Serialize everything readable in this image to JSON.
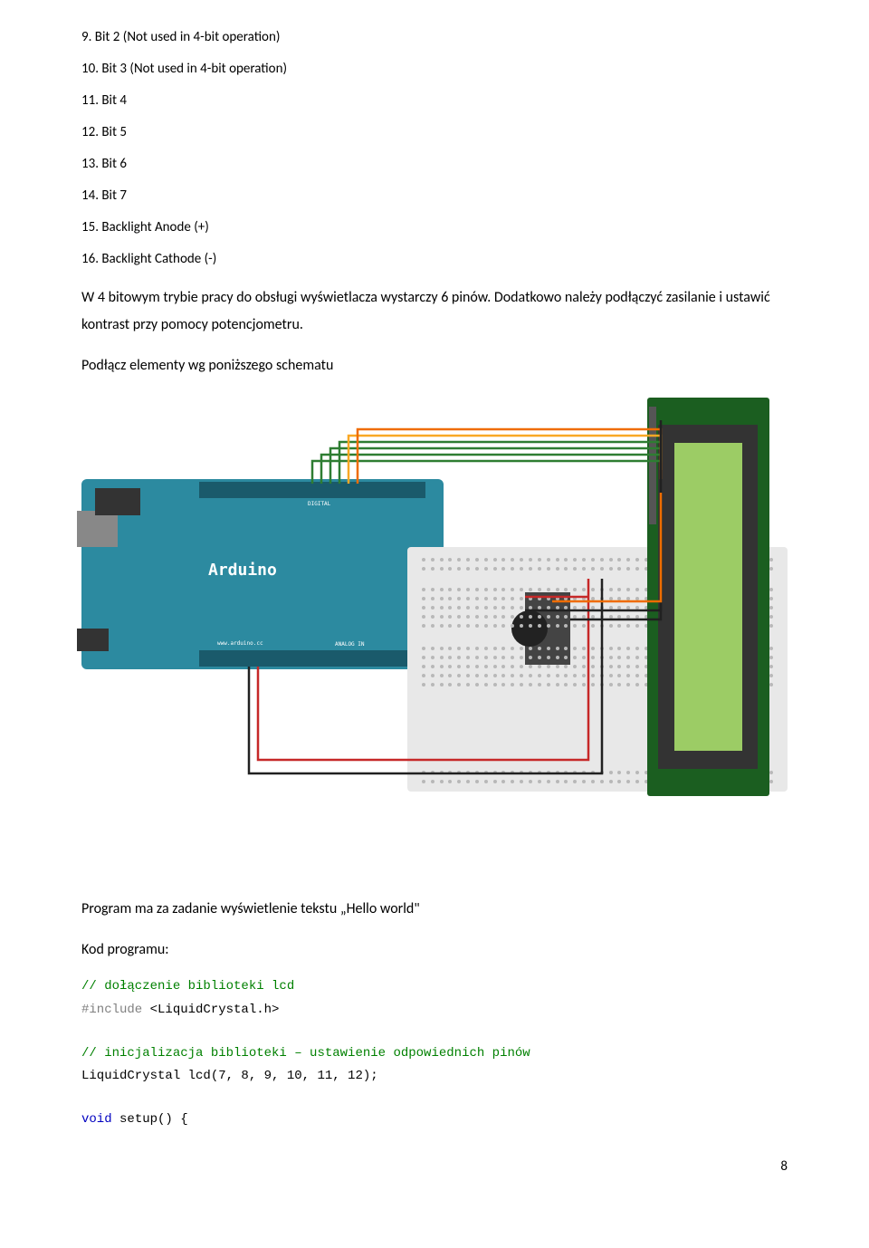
{
  "list": {
    "items": [
      "9.   Bit 2 (Not used in 4-bit operation)",
      "10. Bit 3 (Not used in 4-bit operation)",
      "11. Bit 4",
      "12. Bit 5",
      "13. Bit 6",
      "14. Bit 7",
      "15. Backlight Anode (+)",
      "16. Backlight Cathode (-)"
    ]
  },
  "paragraphs": {
    "p1": "W 4 bitowym trybie pracy do obsługi wyświetlacza wystarczy 6 pinów. Dodatkowo należy podłączyć zasilanie i ustawić kontrast przy pomocy potencjometru.",
    "p2": "Podłącz elementy wg poniższego schematu",
    "p3": "Program ma za zadanie wyświetlenie tekstu „Hello world\"",
    "p4": "Kod programu:"
  },
  "arduino": {
    "label": "Arduino",
    "url": "www.arduino.cc",
    "pins_top": "DIGITAL",
    "pins_bottom": "ANALOG IN"
  },
  "code": {
    "c1": "// dołączenie biblioteki lcd",
    "c2_pre": "#include",
    "c2_arg": " <LiquidCrystal.h>",
    "c3": "// inicjalizacja biblioteki – ustawienie odpowiednich pinów",
    "c4": "LiquidCrystal lcd(7, 8, 9, 10, 11, 12);",
    "c5_kw": "void",
    "c5_rest": " setup() {"
  },
  "colors": {
    "arduino_board": "#2c8aa0",
    "lcd_board": "#1b5e20",
    "lcd_screen": "#9ccc65",
    "breadboard": "#e8e8e8",
    "wire_red": "#c62828",
    "wire_black": "#212121",
    "wire_green": "#2e7d32",
    "wire_yellow": "#f9a825",
    "wire_orange": "#ef6c00",
    "comment_color": "#008000",
    "keyword_color": "#0000c0",
    "preprocessor_color": "#808080"
  },
  "page_number": "8"
}
